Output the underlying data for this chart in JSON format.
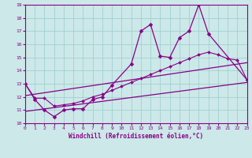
{
  "xlabel": "Windchill (Refroidissement éolien,°C)",
  "xlim": [
    0,
    23
  ],
  "ylim": [
    10,
    19
  ],
  "yticks": [
    10,
    11,
    12,
    13,
    14,
    15,
    16,
    17,
    18,
    19
  ],
  "xticks": [
    0,
    1,
    2,
    3,
    4,
    5,
    6,
    7,
    8,
    9,
    10,
    11,
    12,
    13,
    14,
    15,
    16,
    17,
    18,
    19,
    20,
    21,
    22,
    23
  ],
  "bg_color": "#cce8e8",
  "line_color": "#880088",
  "grid_color": "#99cccc",
  "series": [
    {
      "x": [
        0,
        1,
        2,
        3,
        4,
        5,
        6,
        7,
        8,
        9,
        11,
        12,
        13,
        14,
        15,
        16,
        17,
        18,
        19,
        23
      ],
      "y": [
        13.0,
        11.8,
        11.0,
        10.5,
        11.0,
        11.1,
        11.1,
        11.8,
        12.0,
        12.9,
        14.5,
        17.0,
        17.5,
        15.1,
        15.0,
        16.5,
        17.0,
        19.0,
        16.8,
        13.3
      ],
      "marker": "D",
      "markersize": 2.5,
      "linewidth": 0.9,
      "connect_last_to_end": false
    },
    {
      "x": [
        0,
        1,
        2,
        3,
        4,
        5,
        6,
        7,
        8,
        9,
        10,
        11,
        12,
        13,
        14,
        15,
        16,
        17,
        18,
        19,
        20,
        21,
        22,
        23
      ],
      "y": [
        13.0,
        11.9,
        11.9,
        11.3,
        11.4,
        11.5,
        11.7,
        12.0,
        12.2,
        12.5,
        12.8,
        13.1,
        13.4,
        13.7,
        14.0,
        14.3,
        14.6,
        14.9,
        15.2,
        15.4,
        15.2,
        14.9,
        14.8,
        13.3
      ],
      "marker": "D",
      "markersize": 2.0,
      "linewidth": 0.8
    },
    {
      "x": [
        0,
        23
      ],
      "y": [
        10.9,
        13.1
      ],
      "marker": null,
      "markersize": 0,
      "linewidth": 0.9
    },
    {
      "x": [
        0,
        23
      ],
      "y": [
        12.1,
        14.6
      ],
      "marker": null,
      "markersize": 0,
      "linewidth": 0.9
    }
  ]
}
